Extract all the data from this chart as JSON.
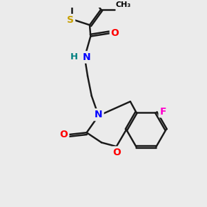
{
  "bg_color": "#ebebeb",
  "atom_colors": {
    "S": "#c8a000",
    "O": "#ff0000",
    "N": "#0000ff",
    "F": "#ff00cc",
    "H": "#008080",
    "C": "#000000"
  },
  "bond_color": "#1a1a1a",
  "bond_width": 1.8,
  "font_size": 9.5
}
